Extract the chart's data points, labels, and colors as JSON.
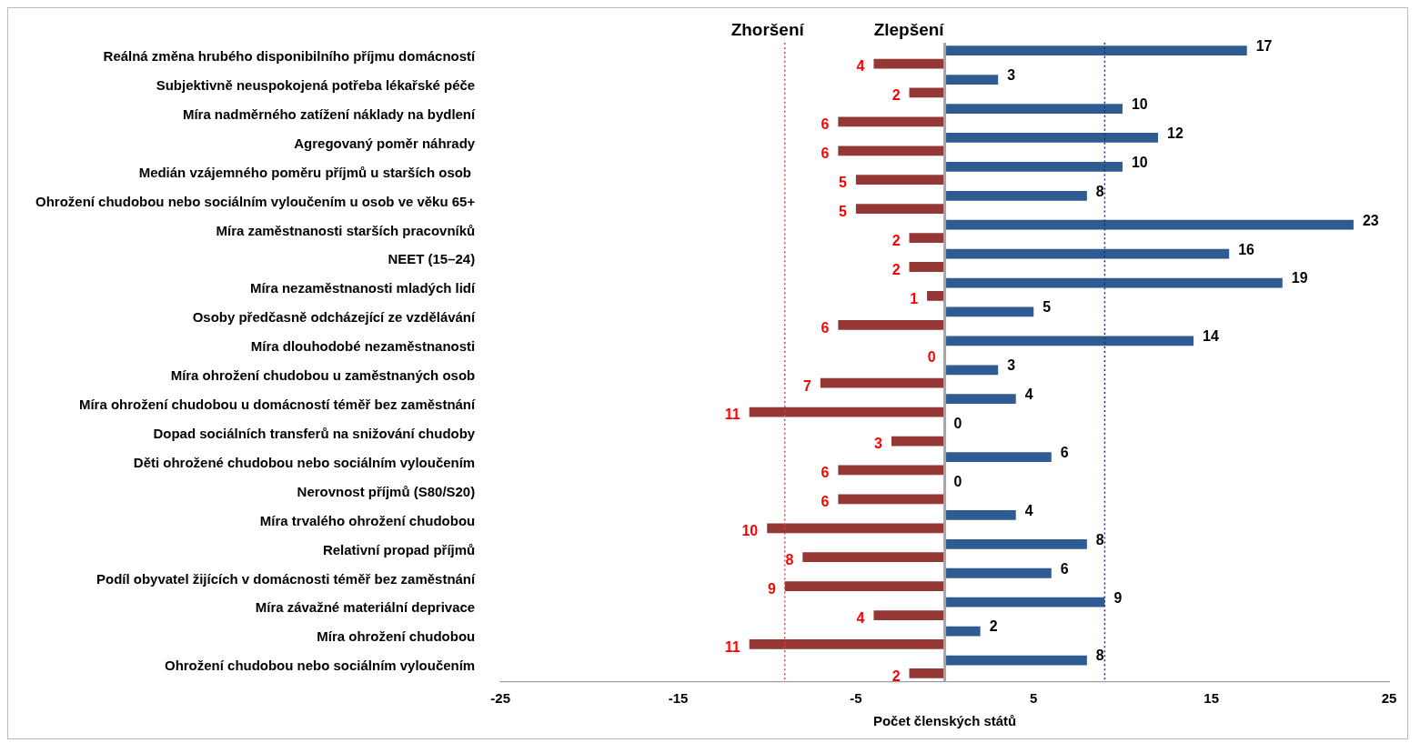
{
  "chart_data": {
    "type": "bar",
    "orientation": "horizontal",
    "xlabel": "Počet členských států",
    "annotations": [
      "Zhoršení",
      "Zlepšení"
    ],
    "categories": [
      "Reálná změna hrubého disponibilního příjmu domácností",
      "Subjektivně neuspokojená potřeba lékařské péče",
      "Míra nadměrného zatížení náklady na bydlení",
      "Agregovaný poměr náhrady",
      "Medián vzájemného poměru příjmů u starších osob ",
      "Ohrožení chudobou nebo sociálním vyloučením u osob ve věku 65+",
      "Míra zaměstnanosti starších pracovníků",
      "NEET (15–24)",
      "Míra nezaměstnanosti mladých lidí",
      "Osoby předčasně odcházející ze vzdělávání",
      "Míra dlouhodobé nezaměstnanosti",
      "Míra ohrožení chudobou u zaměstnaných osob",
      "Míra ohrožení chudobou u domácností téměř bez zaměstnání",
      "Dopad sociálních transferů na snižování chudoby",
      "Děti ohrožené chudobou nebo sociálním vyloučením",
      "Nerovnost příjmů (S80/S20)",
      "Míra trvalého ohrožení chudobou",
      "Relativní propad příjmů",
      "Podíl obyvatel žijících v domácnosti téměř bez zaměstnání",
      "Míra závažné materiální deprivace",
      "Míra ohrožení chudobou",
      "Ohrožení chudobou nebo sociálním vyloučením"
    ],
    "series": [
      {
        "color": "#2f5b93",
        "values": [
          17,
          3,
          10,
          12,
          10,
          8,
          23,
          16,
          19,
          5,
          14,
          3,
          4,
          0,
          6,
          0,
          4,
          8,
          6,
          9,
          2,
          8
        ],
        "value_labels": [
          "17",
          "3",
          "10",
          "12",
          "10",
          "8",
          "23",
          "16",
          "19",
          "5",
          "14",
          "3",
          "4",
          "0",
          "6",
          "0",
          "4",
          "8",
          "6",
          "9",
          "2",
          "8"
        ]
      },
      {
        "color": "#953735",
        "base": [
          -4,
          -2,
          -6,
          -6,
          -5,
          -5,
          -2,
          -2,
          -1,
          -6,
          null,
          -7,
          -11,
          -3,
          -6,
          -6,
          -10,
          -8,
          -9,
          -4,
          -11,
          -2
        ],
        "values": [
          4,
          2,
          6,
          6,
          5,
          5,
          2,
          2,
          1,
          6,
          0,
          7,
          11,
          3,
          6,
          6,
          10,
          8,
          9,
          4,
          11,
          2
        ],
        "value_labels": [
          "4",
          "2",
          "6",
          "6",
          "5",
          "5",
          "2",
          "2",
          "1",
          "6",
          "0",
          "7",
          "11",
          "3",
          "6",
          "6",
          "10",
          "8",
          "9",
          "4",
          "11",
          "2"
        ]
      }
    ],
    "xlim": [
      -25,
      25
    ],
    "xticks": [
      -25,
      -15,
      -5,
      5,
      15,
      25
    ],
    "grid": false,
    "legend": false,
    "ref_lines": [
      {
        "axis": "x",
        "value": 0,
        "color": "#a6a6a6",
        "line_style": "solid"
      },
      {
        "axis": "x",
        "value": -9,
        "color": "#c0504d",
        "line_style": "dotted"
      },
      {
        "axis": "x",
        "value": 9,
        "color": "#1f2d6b",
        "line_style": "dotted"
      }
    ]
  }
}
